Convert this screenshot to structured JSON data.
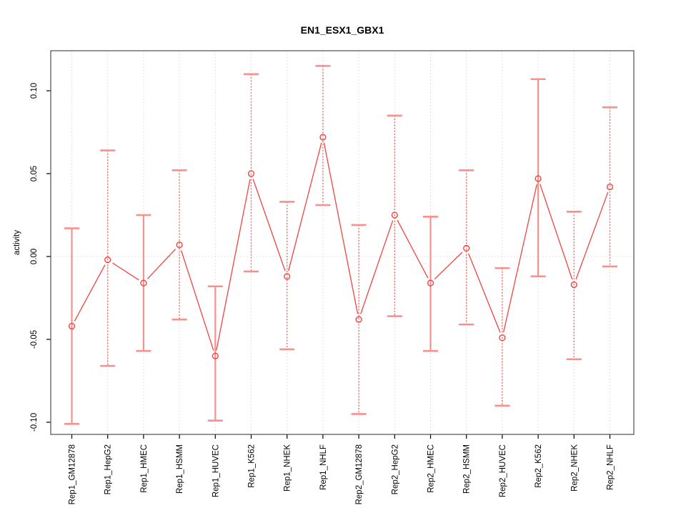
{
  "title": "EN1_ESX1_GBX1",
  "chart_data": {
    "type": "line",
    "title": "EN1_ESX1_GBX1",
    "xlabel": "",
    "ylabel": "activity",
    "ylim": [
      -0.115,
      0.118
    ],
    "ytick_values": [
      0.1,
      0.05,
      0.0,
      -0.05,
      -0.1
    ],
    "ytick_labels": [
      "0.10",
      "0.05",
      "0.00",
      "-0.05",
      "-0.10"
    ],
    "grid": "dotted vertical line per category; dotted horizontal line at y=0; no legend",
    "legend_position": "none",
    "marker": "open-circle with error bars",
    "line_color": "#ef4541",
    "errorbar_color": "#f7918d",
    "grid_color": "#d9d9d9",
    "categories": [
      "Rep1_GM12878",
      "Rep1_HepG2",
      "Rep1_HMEC",
      "Rep1_HSMM",
      "Rep1_HUVEC",
      "Rep1_K562",
      "Rep1_NHEK",
      "Rep1_NHLF",
      "Rep2_GM12878",
      "Rep2_HepG2",
      "Rep2_HMEC",
      "Rep2_HSMM",
      "Rep2_HUVEC",
      "Rep2_K562",
      "Rep2_NHEK",
      "Rep2_NHLF"
    ],
    "series": [
      {
        "name": "activity",
        "values": [
          -0.042,
          -0.002,
          -0.016,
          0.007,
          -0.06,
          0.05,
          -0.012,
          0.072,
          -0.038,
          0.025,
          -0.016,
          0.005,
          -0.049,
          0.047,
          -0.017,
          0.042
        ],
        "error_high": [
          0.017,
          0.064,
          0.025,
          0.052,
          -0.018,
          0.11,
          0.033,
          0.115,
          0.019,
          0.085,
          0.024,
          0.052,
          -0.007,
          0.107,
          0.027,
          0.09
        ],
        "error_low": [
          -0.101,
          -0.066,
          -0.057,
          -0.038,
          -0.099,
          -0.009,
          -0.056,
          0.031,
          -0.095,
          -0.036,
          -0.057,
          -0.041,
          -0.09,
          -0.012,
          -0.062,
          -0.006
        ]
      }
    ]
  }
}
